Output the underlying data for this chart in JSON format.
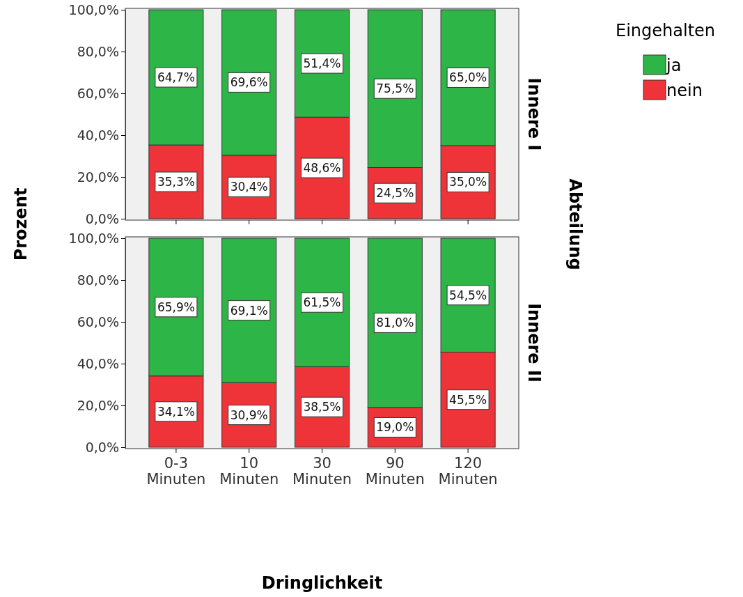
{
  "chart_data": [
    {
      "type": "bar",
      "stacked": true,
      "subtitle": "Innere I",
      "ylabel": "Prozent",
      "legend_title": "Eingehalten",
      "legend": "top right",
      "tick_labels": "y",
      "annotations": [
        "Abteilung"
      ],
      "categories": [
        null,
        null,
        null,
        null,
        null
      ],
      "ylim": [
        0,
        100
      ],
      "yticks": [
        {
          "value": 0,
          "label": "0,0%"
        },
        {
          "value": 20,
          "label": "20,0%"
        },
        {
          "value": 40,
          "label": "40,0%"
        },
        {
          "value": 60,
          "label": "60,0%"
        },
        {
          "value": 80,
          "label": "80,0%"
        },
        {
          "value": 100,
          "label": "100,0%"
        }
      ],
      "series": [
        {
          "name": "nein",
          "color": "#ee3438",
          "values": [
            35.3,
            30.4,
            48.6,
            24.5,
            35.0
          ],
          "value_labels": [
            "35,3%",
            "30,4%",
            "48,6%",
            "24,5%",
            "35,0%"
          ]
        },
        {
          "name": "ja",
          "color": "#2eb548",
          "values": [
            64.7,
            69.6,
            51.4,
            75.5,
            65.0
          ],
          "value_labels": [
            "64,7%",
            "69,6%",
            "51,4%",
            "75,5%",
            "65,0%"
          ]
        }
      ]
    },
    {
      "type": "bar",
      "stacked": true,
      "subtitle": "Innere II",
      "xlabel": "Dringlichkeit",
      "categories": [
        "0-3 Minuten",
        "10 Minuten",
        "30 Minuten",
        "90 Minuten",
        "120 Minuten"
      ],
      "ylim": [
        0,
        100
      ],
      "yticks": [
        {
          "value": 0,
          "label": "0,0%"
        },
        {
          "value": 20,
          "label": "20,0%"
        },
        {
          "value": 40,
          "label": "40,0%"
        },
        {
          "value": 60,
          "label": "60,0%"
        },
        {
          "value": 80,
          "label": "80,0%"
        },
        {
          "value": 100,
          "label": "100,0%"
        }
      ],
      "series": [
        {
          "color": "#ee3438",
          "values": [
            34.1,
            30.9,
            38.5,
            19.0,
            45.5
          ],
          "value_labels": [
            "34,1%",
            "30,9%",
            "38,5%",
            "19,0%",
            "45,5%"
          ]
        },
        {
          "color": "#2eb548",
          "values": [
            65.9,
            69.1,
            61.5,
            81.0,
            54.5
          ],
          "value_labels": [
            "65,9%",
            "69,1%",
            "61,5%",
            "81,0%",
            "54,5%"
          ]
        }
      ]
    }
  ]
}
